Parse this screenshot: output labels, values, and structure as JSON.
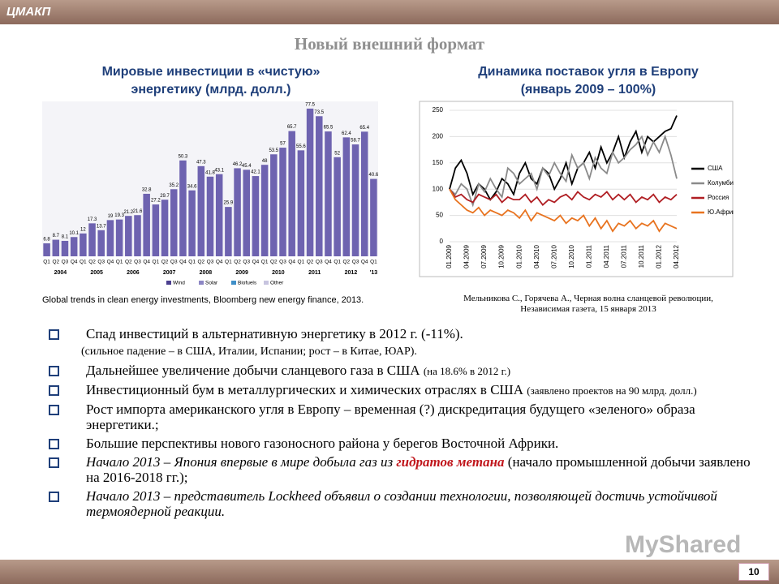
{
  "header": {
    "org": "ЦМАКП",
    "title": "Новый внешний формат",
    "page": "10"
  },
  "left_chart": {
    "type": "bar",
    "title": [
      "Мировые инвестиции в «чистую»",
      "энергетику (млрд. долл.)"
    ],
    "categories": [
      "Q1",
      "Q2",
      "Q3",
      "Q4",
      "Q1",
      "Q2",
      "Q3",
      "Q4",
      "Q1",
      "Q2",
      "Q3",
      "Q4",
      "Q1",
      "Q2",
      "Q3",
      "Q4",
      "Q1",
      "Q2",
      "Q3",
      "Q4",
      "Q1",
      "Q2",
      "Q3",
      "Q4",
      "Q1",
      "Q2",
      "Q3",
      "Q4",
      "Q1",
      "Q2",
      "Q3",
      "Q4",
      "Q1",
      "Q2",
      "Q3",
      "Q4",
      "Q1"
    ],
    "years": [
      "2004",
      "2005",
      "2006",
      "2007",
      "2008",
      "2009",
      "2010",
      "2011",
      "2012",
      "'13"
    ],
    "values": [
      6.8,
      8.7,
      8.1,
      10.1,
      12.0,
      17.3,
      13.7,
      19.0,
      19.3,
      21.2,
      21.6,
      32.8,
      27.2,
      29.7,
      35.2,
      50.3,
      34.6,
      47.3,
      41.8,
      43.1,
      25.9,
      46.2,
      45.4,
      42.1,
      48.0,
      53.5,
      57.0,
      65.7,
      55.6,
      77.5,
      73.5,
      65.5,
      52.0,
      62.4,
      58.7,
      65.4,
      40.6
    ],
    "color": "#6e63b0",
    "legend": [
      {
        "name": "Wind",
        "color": "#4b3f8f"
      },
      {
        "name": "Solar",
        "color": "#8c86c4"
      },
      {
        "name": "Biofuels",
        "color": "#3f8fc8"
      },
      {
        "name": "Other",
        "color": "#c7c4df"
      }
    ],
    "source": "Global trends in clean energy investments, Bloomberg new energy finance, 2013."
  },
  "right_chart": {
    "type": "line",
    "title": [
      "Динамика поставок угля в Европу",
      "(январь 2009 – 100%)"
    ],
    "categories": [
      "01.2009",
      null,
      null,
      "04.2009",
      null,
      null,
      "07.2009",
      null,
      null,
      "10.2009",
      null,
      null,
      "01.2010",
      null,
      null,
      "04.2010",
      null,
      null,
      "07.2010",
      null,
      null,
      "10.2010",
      null,
      null,
      "01.2011",
      null,
      null,
      "04.2011",
      null,
      null,
      "07.2011",
      null,
      null,
      "10.2011",
      null,
      null,
      "01.2012",
      null,
      null,
      "04.2012"
    ],
    "ylim": [
      0,
      250
    ],
    "yticks": [
      0,
      50,
      100,
      150,
      200,
      250
    ],
    "series": [
      {
        "name": "США",
        "color": "#000000",
        "values": [
          100,
          140,
          155,
          130,
          90,
          110,
          100,
          80,
          95,
          120,
          110,
          90,
          130,
          150,
          120,
          110,
          140,
          130,
          100,
          120,
          150,
          110,
          140,
          150,
          170,
          140,
          180,
          150,
          170,
          200,
          160,
          190,
          210,
          170,
          200,
          190,
          200,
          210,
          215,
          240
        ]
      },
      {
        "name": "Колумбия",
        "color": "#8a8a8a",
        "values": [
          100,
          90,
          110,
          100,
          70,
          110,
          95,
          120,
          100,
          85,
          140,
          130,
          110,
          120,
          130,
          100,
          140,
          125,
          150,
          130,
          115,
          165,
          140,
          150,
          120,
          160,
          140,
          130,
          170,
          150,
          160,
          175,
          185,
          200,
          165,
          190,
          170,
          200,
          165,
          120
        ]
      },
      {
        "name": "Россия",
        "color": "#b01e23",
        "values": [
          100,
          85,
          90,
          80,
          75,
          90,
          85,
          80,
          90,
          75,
          85,
          80,
          80,
          90,
          75,
          85,
          70,
          80,
          75,
          85,
          90,
          80,
          95,
          85,
          80,
          90,
          85,
          95,
          80,
          90,
          80,
          90,
          75,
          85,
          80,
          90,
          75,
          85,
          80,
          90
        ]
      },
      {
        "name": "Ю.Африка",
        "color": "#e8731f",
        "values": [
          100,
          80,
          70,
          60,
          55,
          65,
          50,
          60,
          55,
          50,
          60,
          55,
          45,
          60,
          40,
          55,
          50,
          45,
          40,
          50,
          35,
          45,
          40,
          50,
          30,
          45,
          25,
          40,
          20,
          35,
          30,
          40,
          25,
          35,
          30,
          40,
          20,
          35,
          30,
          25
        ]
      }
    ],
    "source": [
      "Мельникова С., Горячева А., Черная волна сланцевой революции,",
      "Независимая газета, 15 января 2013"
    ]
  },
  "bullets": [
    [
      {
        "text": "Спад инвестиций в альтернативную энергетику в 2012 г. (-11%).",
        "style": "normal"
      },
      {
        "text": "(сильное падение – в США, Италии, Испании; рост – в Китае, ЮАР).",
        "style": "note"
      }
    ],
    [
      {
        "text": "Дальнейшее увеличение добычи сланцевого газа в США ",
        "style": "normal"
      },
      {
        "text": "(на 18.6% в 2012 г.)",
        "style": "small"
      }
    ],
    [
      {
        "text": "Инвестиционный бум в металлургических и химических отраслях в США ",
        "style": "normal"
      },
      {
        "text": "(заявлено проектов на 90 млрд. долл.)",
        "style": "small"
      }
    ],
    [
      {
        "text": "Рост импорта американского угля в Европу – временная (?) дискредитация будущего «зеленого» образа энергетики.;",
        "style": "normal"
      }
    ],
    [
      {
        "text": "Большие перспективы нового газоносного района у берегов Восточной Африки.",
        "style": "normal"
      }
    ],
    [
      {
        "text": "Начало 2013 – Япония впервые в мире добыла газ из ",
        "style": "italic"
      },
      {
        "text": "гидратов метана",
        "style": "emphasis"
      },
      {
        "text": " (начало промышленной добычи заявлено на 2016-2018 гг.);",
        "style": "normal"
      }
    ],
    [
      {
        "text": "Начало 2013 – представитель Lockheed объявил о создании технологии, позволяющей достичь устойчивой термоядерной реакции.",
        "style": "italic"
      }
    ]
  ],
  "watermark": "MyShared"
}
